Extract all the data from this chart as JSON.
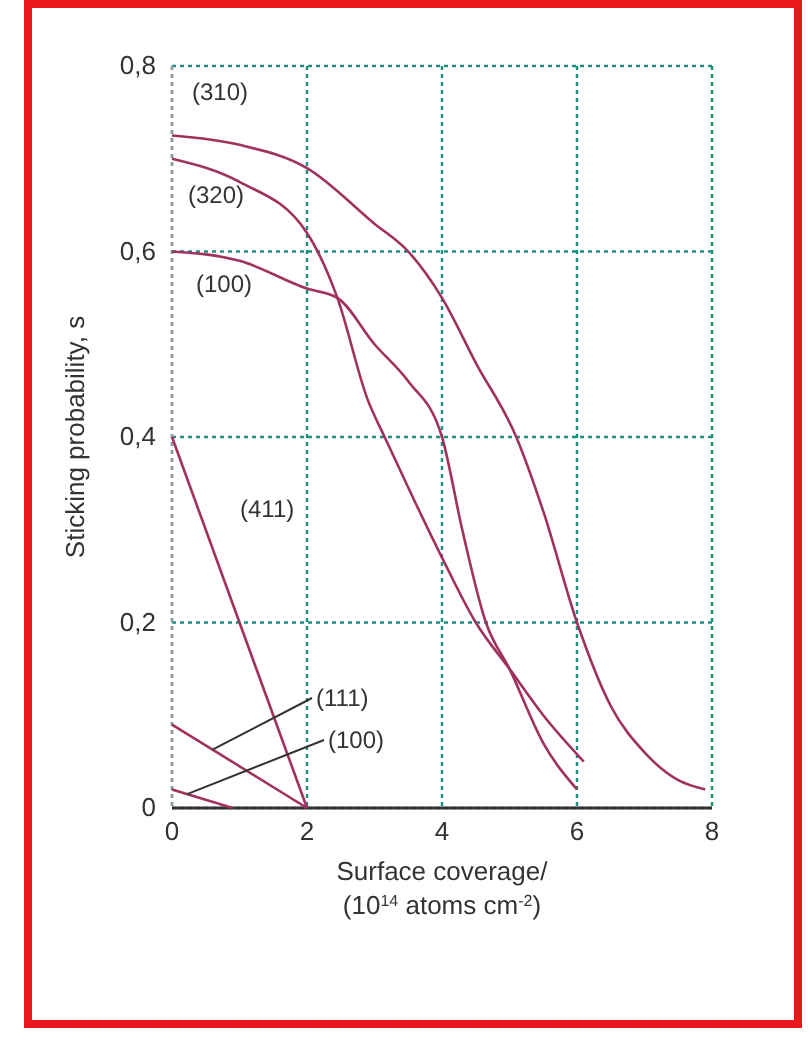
{
  "chart_data": {
    "type": "line",
    "xlabel": "Surface coverage/\n(10$^{14}$ atoms cm$^{-2}$)",
    "ylabel": "Sticking probability, s",
    "xlim": [
      0,
      8
    ],
    "xticks": [
      0,
      2,
      4,
      6,
      8
    ],
    "ylim": [
      0,
      0.8
    ],
    "yticks": [
      0,
      {
        "value": 0.2,
        "label": "0,2"
      },
      {
        "value": 0.4,
        "label": "0,4"
      },
      {
        "value": 0.6,
        "label": "0,6"
      },
      {
        "value": 0.8,
        "label": "0,8"
      }
    ],
    "grid": true,
    "line_style": "solid",
    "series": [
      {
        "name": "(310)",
        "color": "#a0325f",
        "x": [
          0,
          1,
          2,
          3,
          3.5,
          4,
          4.5,
          5.1,
          5.5,
          6,
          6.5,
          7,
          7.5,
          7.9
        ],
        "values": [
          0.725,
          0.715,
          0.69,
          0.63,
          0.6,
          0.55,
          0.48,
          0.4,
          0.32,
          0.2,
          0.11,
          0.06,
          0.03,
          0.02
        ]
      },
      {
        "name": "(320)",
        "color": "#a0325f",
        "x": [
          0,
          1,
          2,
          2.45,
          2.9,
          3.15,
          3.6,
          4,
          4.5,
          5,
          5.5,
          6.1
        ],
        "values": [
          0.7,
          0.675,
          0.62,
          0.55,
          0.44,
          0.4,
          0.33,
          0.27,
          0.2,
          0.15,
          0.1,
          0.05
        ]
      },
      {
        "name": "(100)",
        "color": "#a0325f",
        "x": [
          0,
          1,
          2,
          2.45,
          3,
          3.5,
          4,
          4.3,
          4.65,
          5,
          5.5,
          6
        ],
        "values": [
          0.6,
          0.59,
          0.56,
          0.55,
          0.5,
          0.46,
          0.4,
          0.3,
          0.2,
          0.15,
          0.07,
          0.02
        ]
      },
      {
        "name": "(411)",
        "color": "#a0325f",
        "x": [
          0,
          2
        ],
        "values": [
          0.4,
          0
        ]
      },
      {
        "name": "(111)",
        "color": "#a0325f",
        "x": [
          0,
          2
        ],
        "values": [
          0.09,
          0
        ]
      },
      {
        "name": "(100)",
        "color": "#a0325f",
        "x": [
          0,
          0.9
        ],
        "values": [
          0.02,
          0
        ]
      }
    ]
  }
}
